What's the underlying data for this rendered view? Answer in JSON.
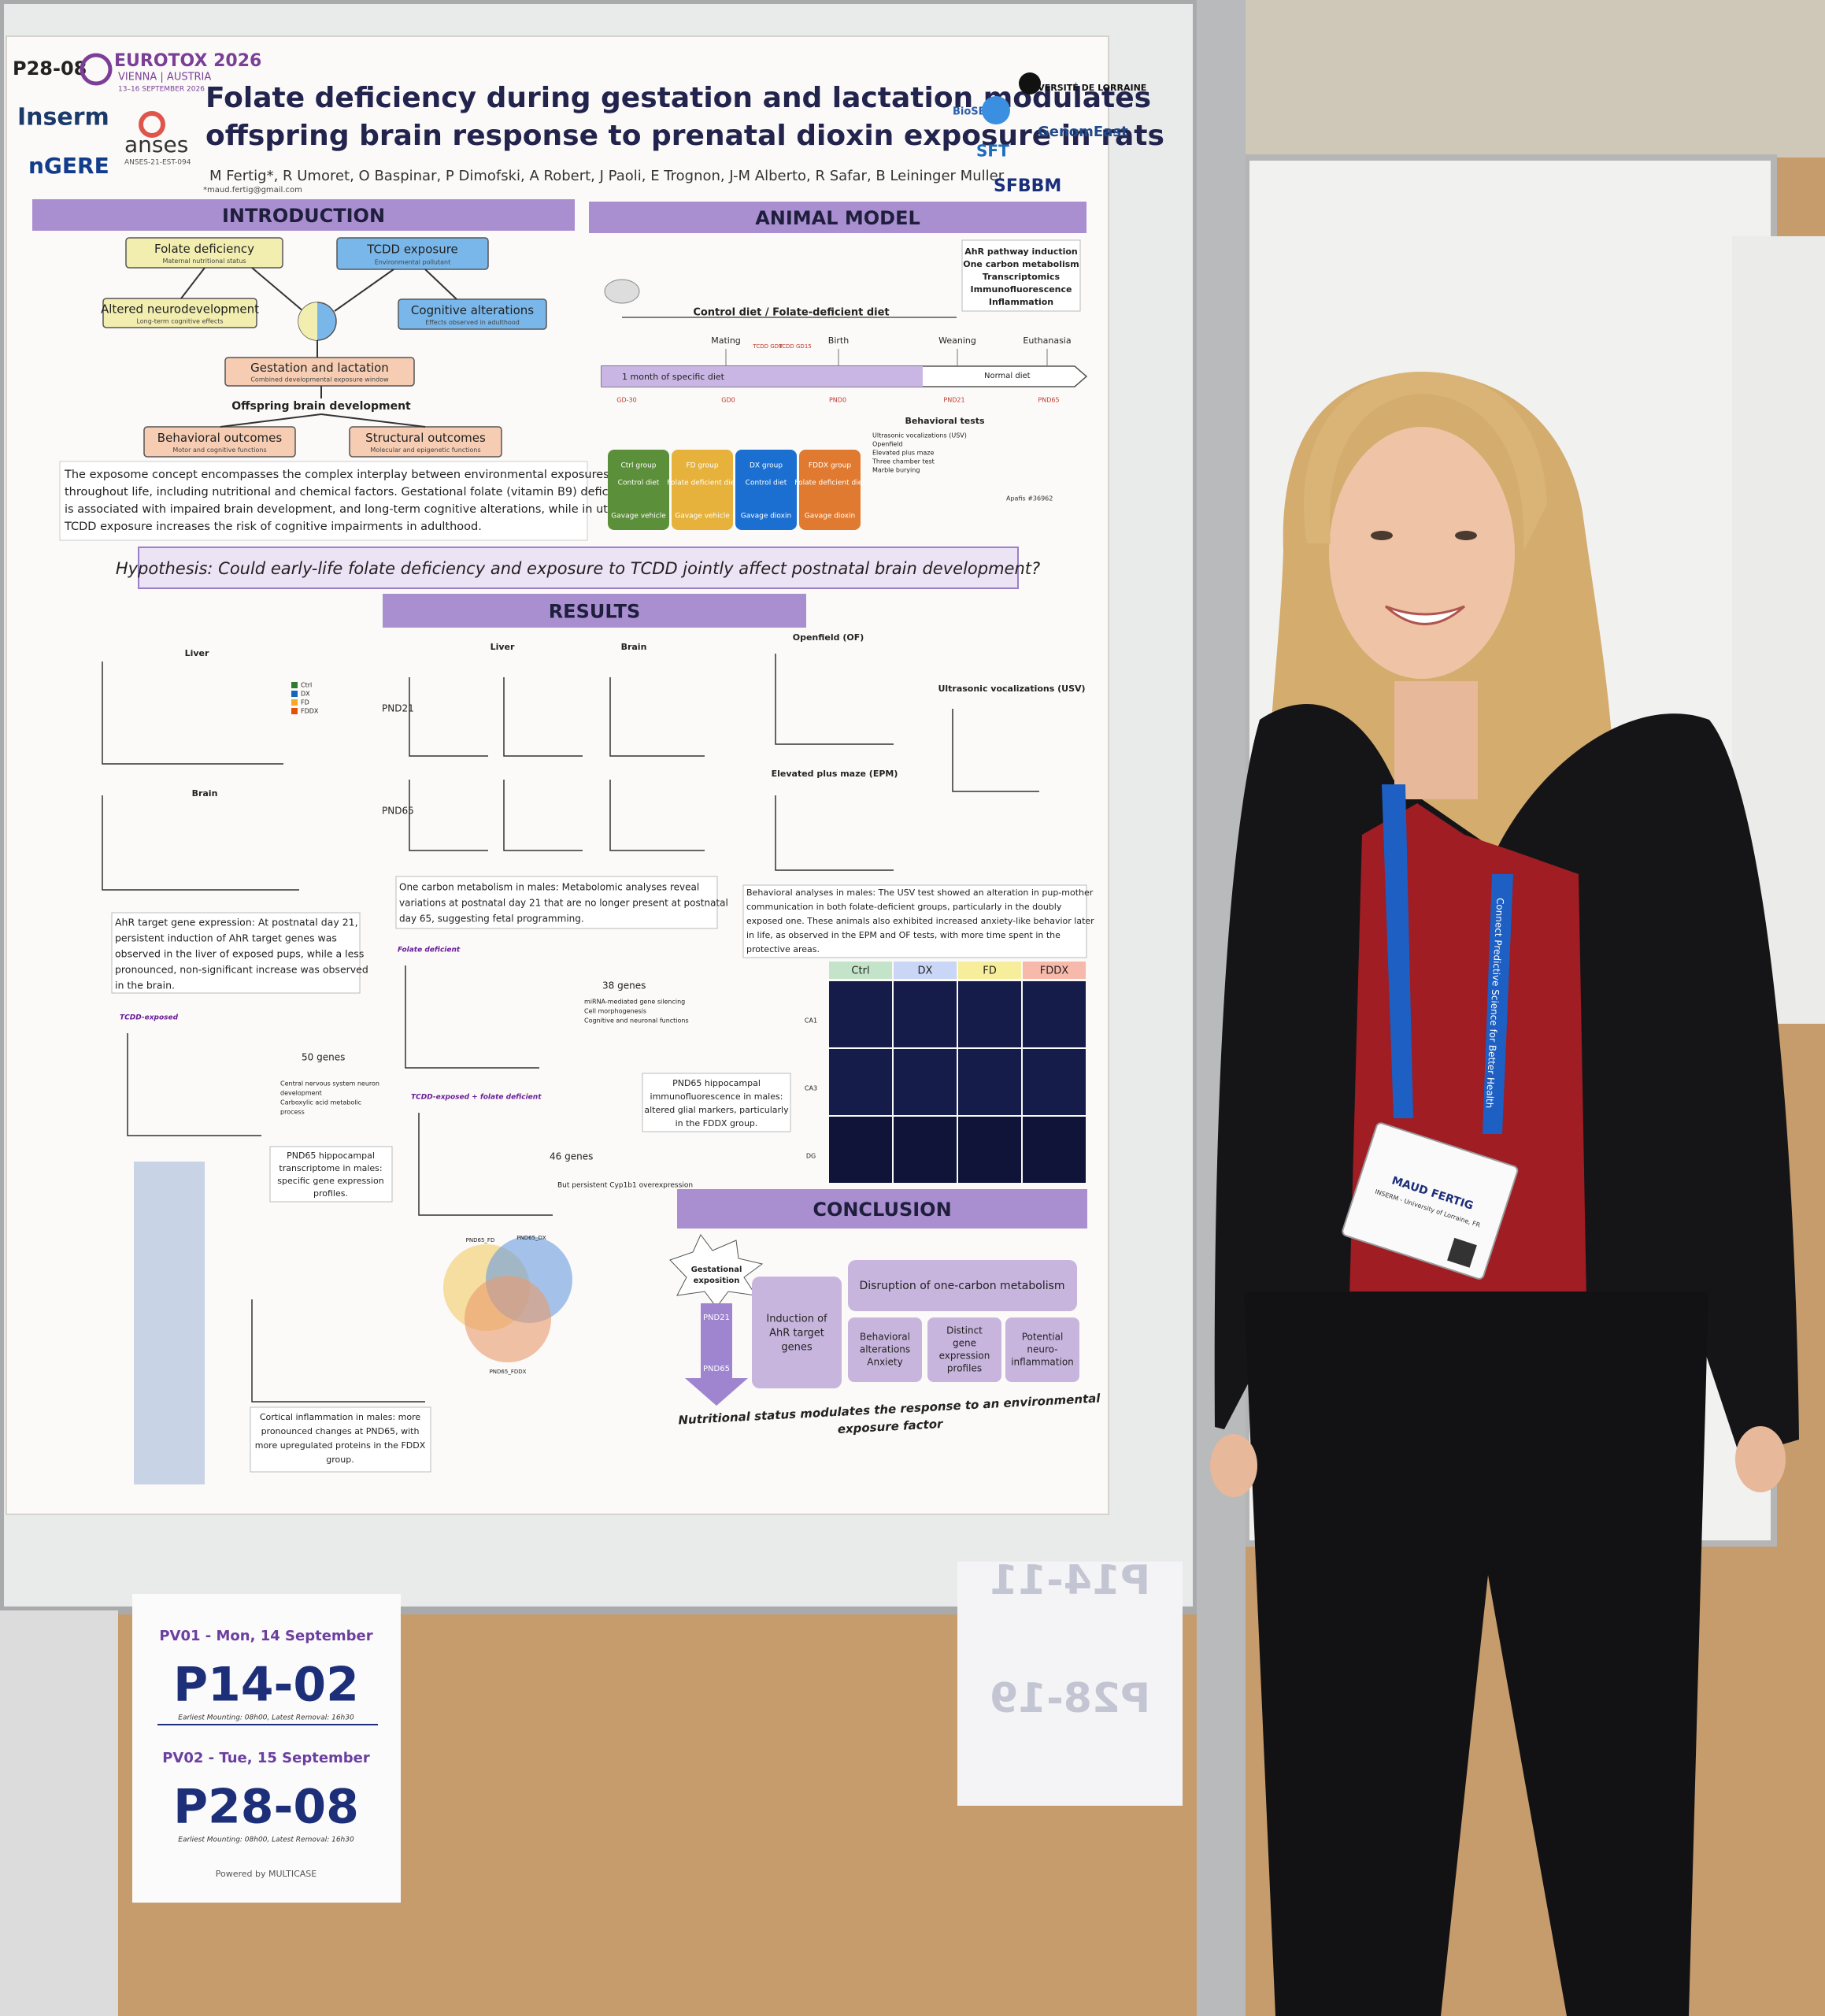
{
  "poster": {
    "code": "P28-08",
    "conference": {
      "name": "EUROTOX 2026",
      "place": "VIENNA | AUSTRIA",
      "dates": "13–16 SEPTEMBER 2026"
    },
    "title": [
      "Folate deficiency during gestation and lactation modulates",
      "offspring brain response to prenatal dioxin exposure in rats"
    ],
    "authors": "M Fertig*, R Umoret, O Baspinar, P Dimofski, A Robert, J Paoli, E Trognon, J-M Alberto, R Safar, B Leininger Muller",
    "email": "*maud.fertig@gmail.com",
    "logos": [
      "Inserm",
      "anses",
      "ANSES-21-EST-094",
      "nGERE",
      "UNIVERSITÉ DE LORRAINE",
      "BioSE",
      "GenomEast",
      "SFT",
      "SFBBM"
    ],
    "introduction": {
      "heading": "INTRODUCTION",
      "boxes": [
        {
          "title": "Folate deficiency",
          "sub": "Maternal nutritional status"
        },
        {
          "title": "TCDD exposure",
          "sub": "Environmental pollutant"
        },
        {
          "title": "Altered neurodevelopment",
          "sub": "Long-term cognitive effects"
        },
        {
          "title": "Cognitive alterations",
          "sub": "Effects observed in adulthood"
        },
        {
          "title": "Gestation and lactation",
          "sub": "Combined developmental exposure window"
        },
        {
          "title": "Behavioral outcomes",
          "sub": "Motor and cognitive functions"
        },
        {
          "title": "Structural outcomes",
          "sub": "Molecular and epigenetic functions"
        }
      ],
      "offspring": "Offspring brain development",
      "text": [
        "The exposome concept encompasses the complex interplay between environmental exposures",
        "throughout life, including nutritional and chemical factors. Gestational folate (vitamin B9) deficiency",
        "is associated with impaired brain development, and long-term cognitive alterations, while in utero",
        "TCDD exposure increases the risk of cognitive impairments in adulthood."
      ]
    },
    "animal_model": {
      "heading": "ANIMAL MODEL",
      "diet": "Control diet / Folate-deficient diet",
      "events": [
        "Mating",
        "Birth",
        "Weaning",
        "Euthanasia"
      ],
      "doses": [
        "TCDD GD8",
        "TCDD GD15"
      ],
      "timepoints": [
        "GD-30",
        "GD0",
        "PND0",
        "PND21",
        "PND65"
      ],
      "periods": [
        "1 month of specific diet",
        "Normal diet"
      ],
      "endpoints": [
        "AhR pathway induction",
        "One carbon metabolism",
        "Transcriptomics",
        "Immunofluorescence",
        "Inflammation"
      ],
      "behavior_heading": "Behavioral tests",
      "behavior_tests": [
        "Ultrasonic vocalizations (USV)",
        "Openfield",
        "Elevated plus maze",
        "Three chamber test",
        "Marble burying"
      ],
      "groups": [
        {
          "name": "Ctrl group",
          "diet": "Control diet",
          "gavage": "Gavage vehicle"
        },
        {
          "name": "FD group",
          "diet": "Folate deficient diet",
          "gavage": "Gavage vehicle"
        },
        {
          "name": "DX group",
          "diet": "Control diet",
          "gavage": "Gavage dioxin"
        },
        {
          "name": "FDDX group",
          "diet": "Folate deficient diet",
          "gavage": "Gavage dioxin"
        }
      ],
      "ethics": "Apafis #36962"
    },
    "hypothesis": "Hypothesis: Could early-life folate deficiency and exposure to TCDD jointly affect postnatal brain development?",
    "results": {
      "heading": "RESULTS",
      "groups": [
        "Ctrl",
        "DX",
        "FD",
        "FDDX"
      ],
      "panel_titles": [
        "Liver",
        "Brain",
        "Liver",
        "Brain",
        "Openfield (OF)",
        "Ultrasonic vocalizations (USV)",
        "Elevated plus maze (EPM)"
      ],
      "ages": [
        "PND21",
        "PND65"
      ],
      "ahr_text": [
        "AhR target gene expression: At postnatal day 21,",
        "persistent induction of AhR target genes was",
        "observed in the liver of exposed pups, while a less",
        "pronounced, non-significant increase was observed",
        "in the brain."
      ],
      "one_carbon_text": [
        "One carbon metabolism in males: Metabolomic analyses reveal",
        "variations at postnatal day 21 that are no longer present at postnatal",
        "day 65, suggesting fetal programming."
      ],
      "behavior_text": [
        "Behavioral analyses in males: The USV test showed an alteration in pup-mother",
        "communication in both folate-deficient groups, particularly in the doubly",
        "exposed one. These animals also exhibited increased anxiety-like behavior later",
        "in life, as observed in the EPM and OF tests, with more time spent in the",
        "protective areas."
      ],
      "volcano_titles": [
        "Folate deficient",
        "TCDD-exposed",
        "TCDD-exposed + folate deficient"
      ],
      "gene_counts": [
        "38 genes",
        "50 genes",
        "46 genes"
      ],
      "fd_terms": [
        "miRNA-mediated gene silencing",
        "Cell morphogenesis",
        "Cognitive and neuronal functions"
      ],
      "dx_terms": [
        "Central nervous system neuron",
        "development",
        "Carboxylic acid metabolic",
        "process"
      ],
      "fddx_term": "But persistent Cyp1b1 overexpression",
      "transcriptome_text": [
        "PND65 hippocampal",
        "transcriptome in males:",
        "specific gene expression",
        "profiles."
      ],
      "if_text": [
        "PND65 hippocampal",
        "immunofluorescence in males:",
        "altered glial markers, particularly",
        "in the FDDX group."
      ],
      "if_regions": [
        "CA1",
        "CA3",
        "DG"
      ],
      "venn": [
        "PND65_FD",
        "PND65_DX",
        "PND65_FDDX"
      ],
      "cortical_text": [
        "Cortical inflammation in males: more",
        "pronounced changes at PND65, with",
        "more upregulated proteins in the FDDX",
        "group."
      ]
    },
    "conclusion": {
      "heading": "CONCLUSION",
      "exposition": [
        "Gestational",
        "exposition"
      ],
      "ages": [
        "PND21",
        "PND65"
      ],
      "ahr": [
        "Induction of",
        "AhR target",
        "genes"
      ],
      "one_carbon": "Disruption of one-carbon metabolism",
      "behavior": [
        "Behavioral",
        "alterations",
        "Anxiety"
      ],
      "genes": [
        "Distinct",
        "gene",
        "expression",
        "profiles"
      ],
      "inflammation": [
        "Potential",
        "neuro-",
        "inflammation"
      ],
      "statement": [
        "Nutritional status modulates the response to an environmental",
        "exposure factor"
      ]
    }
  },
  "signs": {
    "left": [
      {
        "session": "PV01 - Mon, 14 September",
        "code": "P14-02",
        "times": "Earliest Mounting: 08h00, Latest Removal: 16h30"
      },
      {
        "session": "PV02 - Tue, 15 September",
        "code": "P28-08",
        "times": "Earliest Mounting: 08h00, Latest Removal: 16h30"
      }
    ],
    "sponsor": "Powered by MULTICASE",
    "right_codes": [
      "P14-11",
      "P28-19"
    ]
  },
  "badge": {
    "name": "MAUD FERTIG",
    "affiliation": "INSERM - University of Lorraine, FR",
    "lanyard": "Connect Predictive Science for Better Health"
  }
}
